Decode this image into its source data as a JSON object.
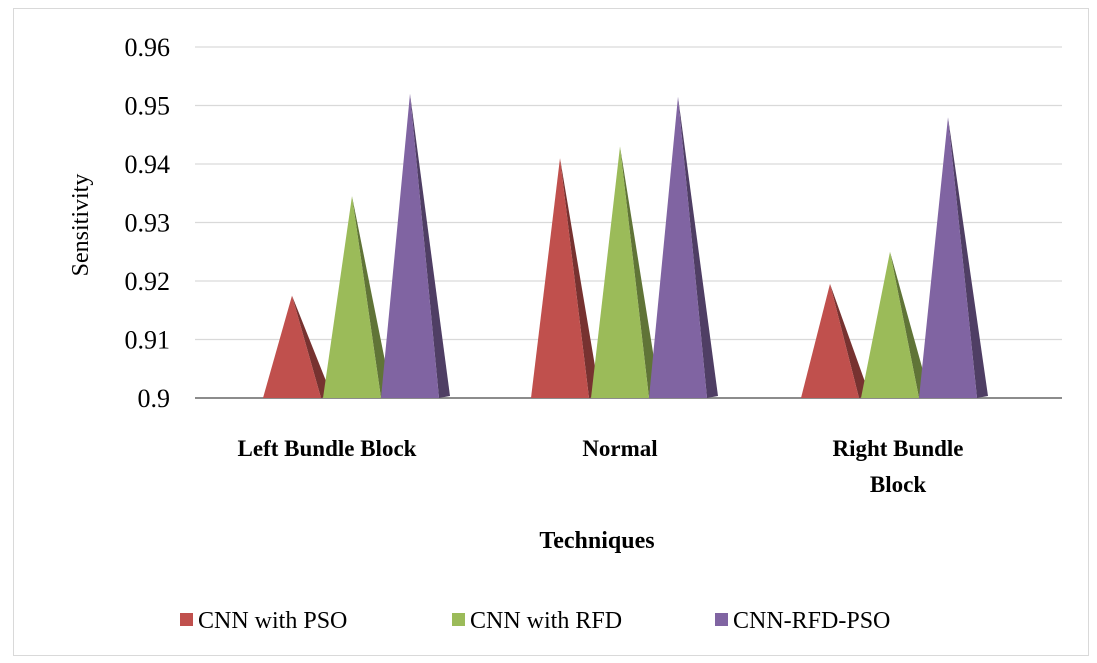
{
  "chart_data": {
    "type": "bar",
    "style": "3d-cone",
    "categories": [
      [
        "Left Bundle Block"
      ],
      [
        "Normal"
      ],
      [
        "Right Bundle",
        "Block"
      ]
    ],
    "series": [
      {
        "name": "CNN with PSO",
        "values": [
          0.9175,
          0.941,
          0.9195
        ],
        "color": "#c0504d"
      },
      {
        "name": "CNN with RFD",
        "values": [
          0.9345,
          0.943,
          0.925
        ],
        "color": "#9bbb59"
      },
      {
        "name": "CNN-RFD-PSO",
        "values": [
          0.952,
          0.9515,
          0.948
        ],
        "color": "#8064a2"
      }
    ],
    "ylim": [
      0.9,
      0.96
    ],
    "yticks": [
      "0.96",
      "0.95",
      "0.94",
      "0.93",
      "0.92",
      "0.91",
      "0.9"
    ],
    "ylabel": "Sensitivity",
    "xlabel": "Techniques",
    "grid": true,
    "legend_position": "bottom"
  }
}
